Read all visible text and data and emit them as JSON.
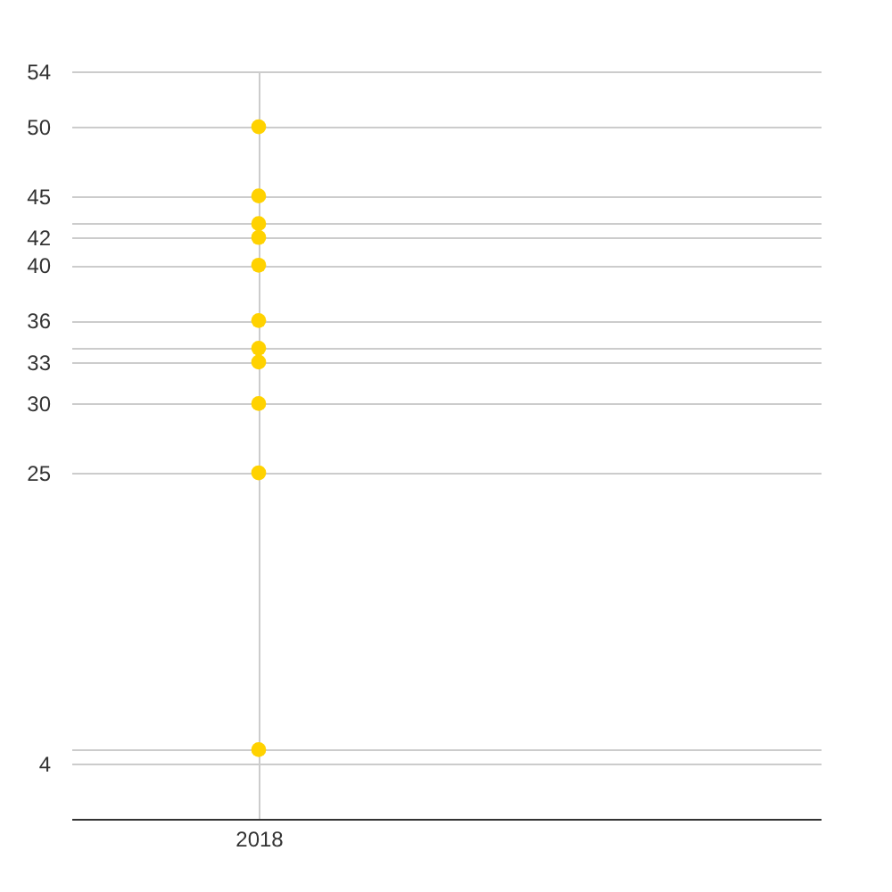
{
  "chart_data": {
    "type": "scatter",
    "categories": [
      "2018"
    ],
    "series": [
      {
        "color": "#ffd200",
        "values": [
          50
        ]
      },
      {
        "color": "#ffd200",
        "values": [
          45
        ]
      },
      {
        "color": "#ffd200",
        "values": [
          43
        ]
      },
      {
        "color": "#ffd200",
        "values": [
          42
        ]
      },
      {
        "color": "#ffd200",
        "values": [
          40
        ]
      },
      {
        "color": "#ffd200",
        "values": [
          36
        ]
      },
      {
        "color": "#ffd200",
        "values": [
          34
        ]
      },
      {
        "color": "#ffd200",
        "values": [
          33
        ]
      },
      {
        "color": "#ffd200",
        "values": [
          30
        ]
      },
      {
        "color": "#ffd200",
        "values": [
          25
        ]
      },
      {
        "color": "#ffd200",
        "values": [
          5
        ]
      }
    ],
    "ylim": [
      0,
      54
    ],
    "yticks": [
      54,
      50,
      45,
      {
        "value": 43,
        "label": null
      },
      42,
      40,
      36,
      {
        "value": 34,
        "label": null
      },
      33,
      30,
      25,
      {
        "value": 5,
        "label": null
      },
      4
    ],
    "grid": true,
    "marker": "circle"
  }
}
